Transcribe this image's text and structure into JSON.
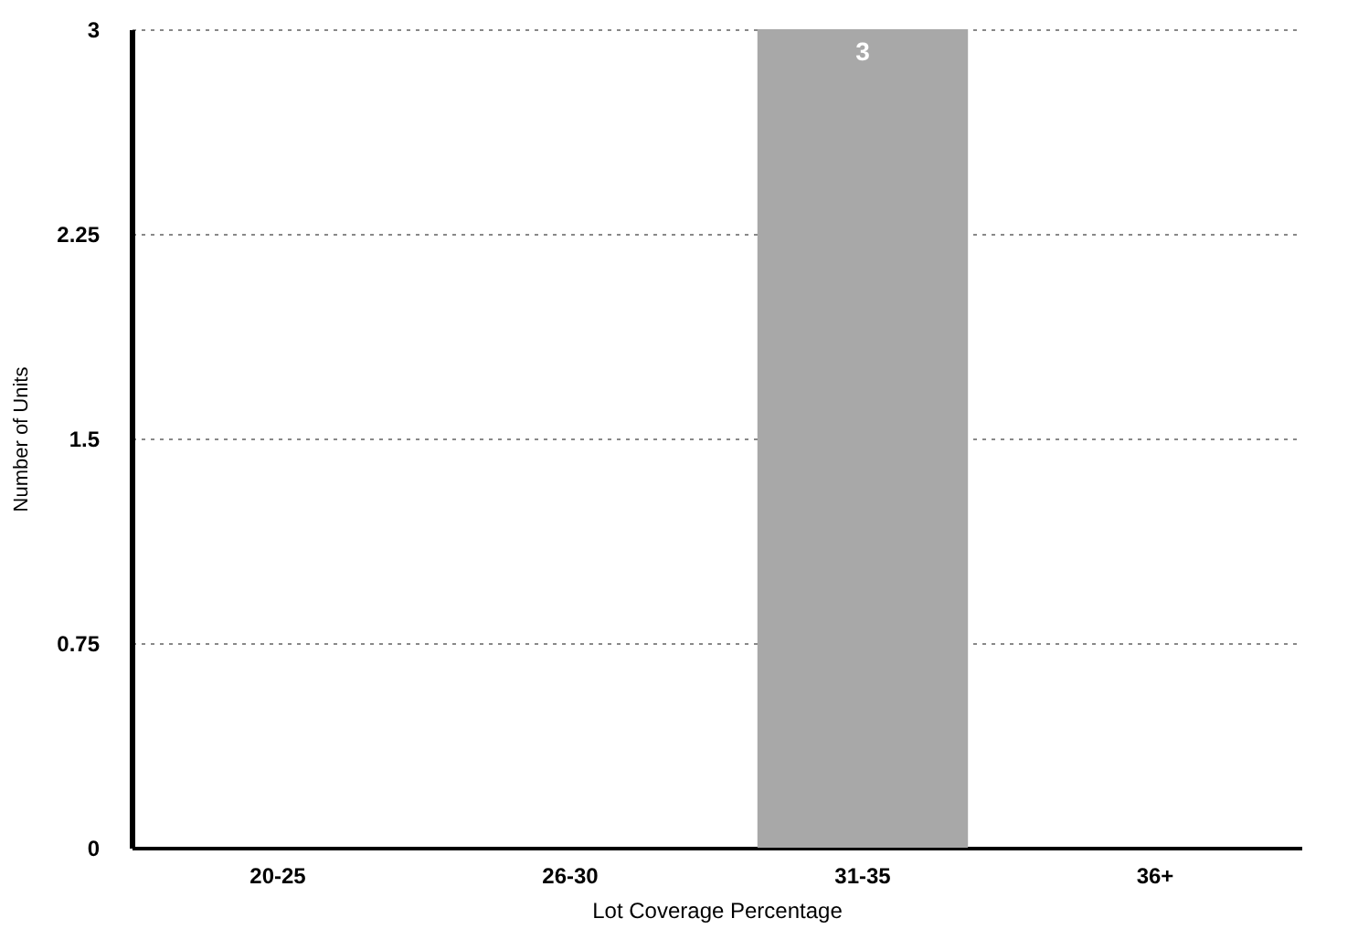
{
  "chart_data": {
    "type": "bar",
    "xlabel": "Lot Coverage Percentage",
    "ylabel": "Number of Units",
    "categories": [
      "20-25",
      "26-30",
      "31-35",
      "36+"
    ],
    "values": [
      0,
      0,
      3,
      0
    ],
    "value_labels": [
      null,
      null,
      "3",
      null
    ],
    "color": "#a8a8a8",
    "ylim": [
      0,
      3
    ],
    "yticks": [
      0,
      0.75,
      1.5,
      2.25,
      3
    ],
    "grid": "y"
  }
}
